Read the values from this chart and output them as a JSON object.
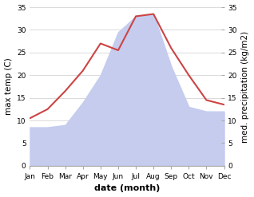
{
  "months": [
    "Jan",
    "Feb",
    "Mar",
    "Apr",
    "May",
    "Jun",
    "Jul",
    "Aug",
    "Sep",
    "Oct",
    "Nov",
    "Dec"
  ],
  "max_temp": [
    10.5,
    12.5,
    16.5,
    21.0,
    27.0,
    25.5,
    33.0,
    33.5,
    26.0,
    20.0,
    14.5,
    13.5
  ],
  "precipitation": [
    8.5,
    8.5,
    9.0,
    14.0,
    20.0,
    29.5,
    33.0,
    33.5,
    22.0,
    13.0,
    12.0,
    12.0
  ],
  "temp_color": "#cc4444",
  "precip_fill_color": "#c5ccee",
  "ylim": [
    0,
    35
  ],
  "yticks": [
    0,
    5,
    10,
    15,
    20,
    25,
    30,
    35
  ],
  "ylabel_left": "max temp (C)",
  "ylabel_right": "med. precipitation (kg/m2)",
  "xlabel": "date (month)",
  "background_color": "#ffffff",
  "line_width": 1.5,
  "label_fontsize": 7.5,
  "tick_fontsize": 6.5,
  "xlabel_fontsize": 8,
  "spine_color": "#aaaaaa",
  "tick_color": "#555555"
}
